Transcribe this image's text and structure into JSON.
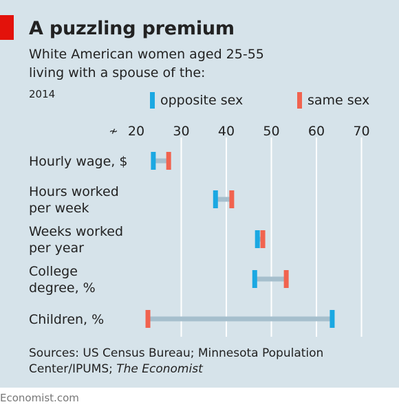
{
  "header": {
    "title": "A puzzling premium",
    "subtitle_line1": "White American women aged 25-55",
    "subtitle_line2": "living with a spouse of the:",
    "year": "2014"
  },
  "legend": [
    {
      "label": "opposite sex",
      "color": "#1ba8e2"
    },
    {
      "label": "same sex",
      "color": "#f1634f"
    }
  ],
  "colors": {
    "opposite_sex": "#1ba8e2",
    "same_sex": "#f1634f",
    "connector": "#a6bfcd",
    "gridline": "#ffffff",
    "background": "#d6e3ea",
    "brand_red": "#e3120b"
  },
  "axis_break_symbol": "≁",
  "chart_data": {
    "type": "dot-range",
    "x_ticks": [
      20,
      30,
      40,
      50,
      60,
      70
    ],
    "xlim": [
      20,
      70
    ],
    "axis_break": true,
    "grid": true,
    "legend_position": "top",
    "categories": [
      {
        "label_lines": [
          "Hourly wage, $"
        ],
        "opposite_sex": 23.8,
        "same_sex": 27.2
      },
      {
        "label_lines": [
          "Hours worked",
          "per week"
        ],
        "opposite_sex": 37.6,
        "same_sex": 41.2
      },
      {
        "label_lines": [
          "Weeks worked",
          "per year"
        ],
        "opposite_sex": 46.9,
        "same_sex": 48.1
      },
      {
        "label_lines": [
          "College",
          "degree, %"
        ],
        "opposite_sex": 46.3,
        "same_sex": 53.3
      },
      {
        "label_lines": [
          "Children, %"
        ],
        "opposite_sex": 63.5,
        "same_sex": 22.6
      }
    ],
    "series": [
      {
        "name": "opposite sex",
        "key": "opposite_sex"
      },
      {
        "name": "same sex",
        "key": "same_sex"
      }
    ]
  },
  "footer": {
    "sources_prefix": "Sources: US Census Bureau; Minnesota Population Center/IPUMS; ",
    "sources_italic": "The Economist",
    "brand": "Economist.com"
  }
}
